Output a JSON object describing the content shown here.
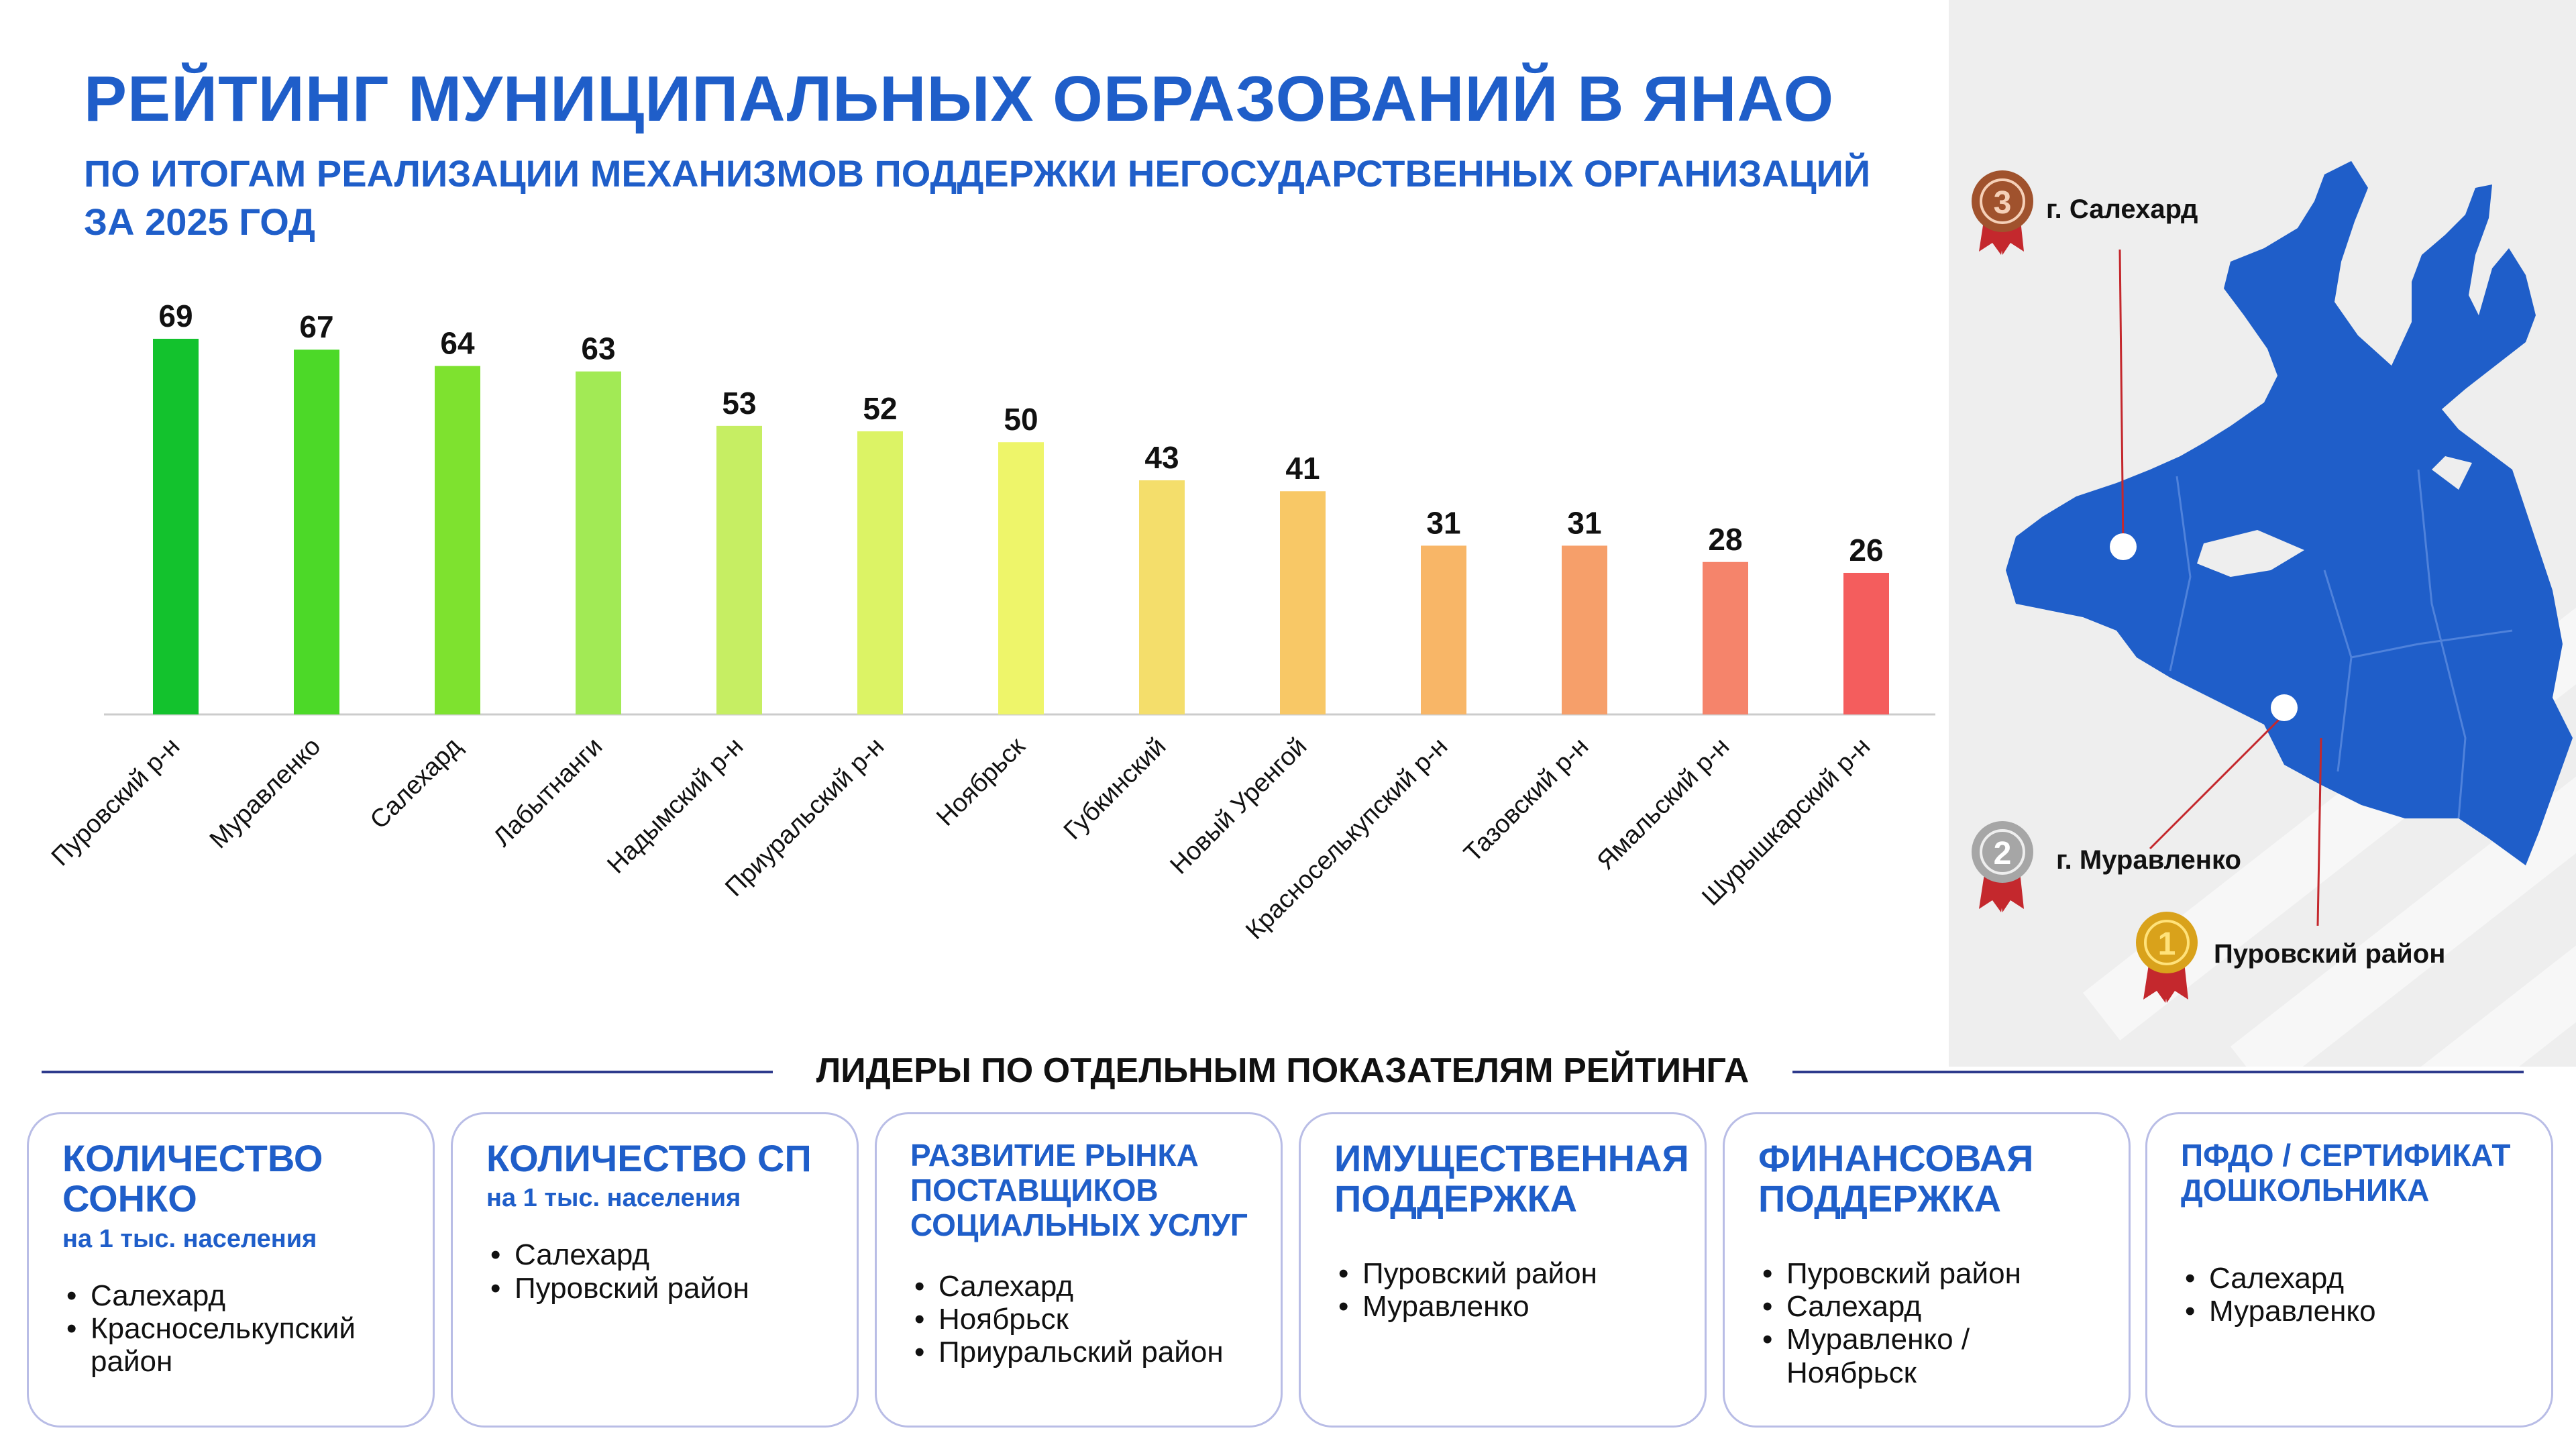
{
  "header": {
    "title": "РЕЙТИНГ МУНИЦИПАЛЬНЫХ ОБРАЗОВАНИЙ В ЯНАО",
    "subtitle_line1": "ПО ИТОГАМ РЕАЛИЗАЦИИ МЕХАНИЗМОВ ПОДДЕРЖКИ НЕГОСУДАРСТВЕННЫХ ОРГАНИЗАЦИЙ",
    "subtitle_line2": "ЗА 2025 ГОД"
  },
  "chart_data": {
    "type": "bar",
    "title": "",
    "xlabel": "",
    "ylabel": "",
    "grid": false,
    "legend": "none",
    "ylim": [
      0,
      69
    ],
    "categories": [
      "Пуровский р-н",
      "Муравленко",
      "Салехард",
      "Лабытнанги",
      "Надымский р-н",
      "Приуральский р-н",
      "Ноябрьск",
      "Губкинский",
      "Новый Уренгой",
      "Красноселькупский р-н",
      "Тазовский р-н",
      "Ямальский р-н",
      "Шурышкарский р-н"
    ],
    "values": [
      69,
      67,
      64,
      63,
      53,
      52,
      50,
      43,
      41,
      31,
      31,
      28,
      26
    ],
    "colors": [
      "#13c22d",
      "#4cd928",
      "#7ee22f",
      "#a2ea55",
      "#c6ee63",
      "#dcf365",
      "#eef56a",
      "#f4de6b",
      "#f8c866",
      "#f8b667",
      "#f69f6a",
      "#f5846b",
      "#f45d5d"
    ]
  },
  "map": {
    "places": [
      {
        "rank": "3",
        "label": "г. Салехард",
        "medal_color": "#a0522d"
      },
      {
        "rank": "2",
        "label": "г. Муравленко",
        "medal_color": "#a6a6a6"
      },
      {
        "rank": "1",
        "label": "Пуровский район",
        "medal_color": "#d9a21b"
      }
    ],
    "region_color": "#1f5ec9"
  },
  "leaders": {
    "heading": "ЛИДЕРЫ ПО ОТДЕЛЬНЫМ ПОКАЗАТЕЛЯМ РЕЙТИНГА",
    "cards": [
      {
        "title": "КОЛИЧЕСТВО СОНКО",
        "subtitle": "на 1 тыс. населения",
        "items": [
          "Салехард",
          "Красноселькупский район"
        ]
      },
      {
        "title": "КОЛИЧЕСТВО СП",
        "subtitle": "на 1 тыс. населения",
        "items": [
          "Салехард",
          "Пуровский район"
        ]
      },
      {
        "title": "РАЗВИТИЕ РЫНКА ПОСТАВЩИКОВ СОЦИАЛЬНЫХ УСЛУГ",
        "subtitle": "",
        "items": [
          "Салехард",
          "Ноябрьск",
          "Приуральский район"
        ]
      },
      {
        "title": "ИМУЩЕСТВЕННАЯ ПОДДЕРЖКА",
        "subtitle": "",
        "items": [
          "Пуровский район",
          "Муравленко"
        ]
      },
      {
        "title": "ФИНАНСОВАЯ ПОДДЕРЖКА",
        "subtitle": "",
        "items": [
          "Пуровский район",
          "Салехард",
          "Муравленко / Ноябрьск"
        ]
      },
      {
        "title": "ПФДО / СЕРТИФИКАТ ДОШКОЛЬНИКА",
        "subtitle": "",
        "items": [
          "Салехард",
          "Муравленко"
        ]
      }
    ]
  }
}
